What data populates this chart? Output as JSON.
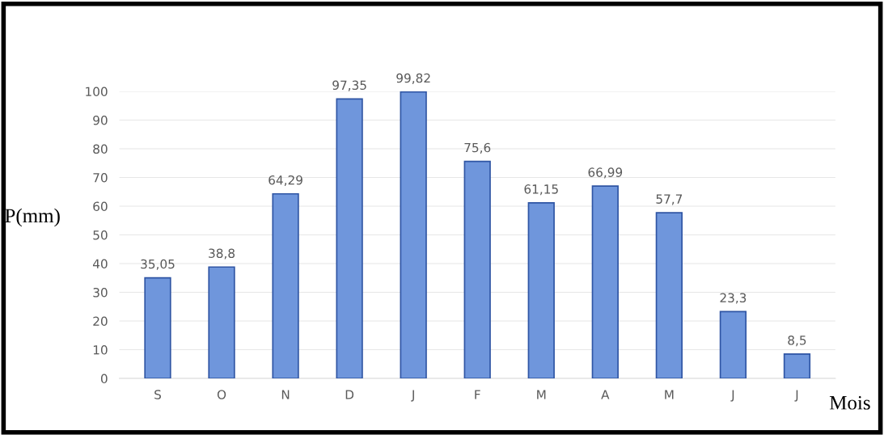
{
  "chart_data": {
    "type": "bar",
    "xlabel": "Mois",
    "ylabel": "P(mm)",
    "categories": [
      "S",
      "O",
      "N",
      "D",
      "J",
      "F",
      "M",
      "A",
      "M",
      "J",
      "J"
    ],
    "values": [
      35.05,
      38.8,
      64.29,
      97.35,
      99.82,
      75.6,
      61.15,
      66.99,
      57.7,
      23.3,
      8.5
    ],
    "value_labels": [
      "35,05",
      "38,8",
      "64,29",
      "97,35",
      "99,82",
      "75,6",
      "61,15",
      "66,99",
      "57,7",
      "23,3",
      "8,5"
    ],
    "color": "#6f96dc",
    "ylim": [
      0,
      100
    ],
    "yticks": [
      0,
      10,
      20,
      30,
      40,
      50,
      60,
      70,
      80,
      90,
      100
    ],
    "grid": "y"
  }
}
